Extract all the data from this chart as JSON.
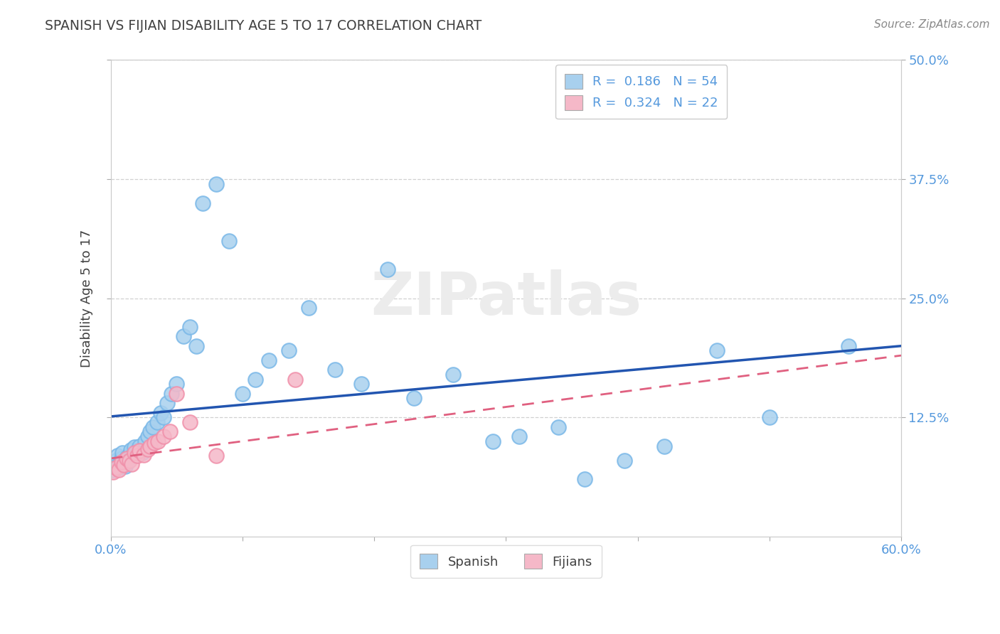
{
  "title": "SPANISH VS FIJIAN DISABILITY AGE 5 TO 17 CORRELATION CHART",
  "source_text": "Source: ZipAtlas.com",
  "ylabel": "Disability Age 5 to 17",
  "xlim": [
    0.0,
    0.6
  ],
  "ylim": [
    0.0,
    0.5
  ],
  "xtick_labels": [
    "0.0%",
    "",
    "",
    "",
    "",
    "",
    "60.0%"
  ],
  "xtick_vals": [
    0.0,
    0.1,
    0.2,
    0.3,
    0.4,
    0.5,
    0.6
  ],
  "ytick_vals": [
    0.125,
    0.25,
    0.375,
    0.5
  ],
  "right_ytick_labels": [
    "12.5%",
    "25.0%",
    "37.5%",
    "50.0%"
  ],
  "spanish_color": "#a8d0ee",
  "fijian_color": "#f5b8c8",
  "spanish_edge_color": "#7ab8e8",
  "fijian_edge_color": "#f090aa",
  "spanish_line_color": "#2255b0",
  "fijian_line_color": "#e06080",
  "legend_label1": "R =  0.186   N = 54",
  "legend_label2": "R =  0.324   N = 22",
  "title_color": "#404040",
  "axis_label_color": "#404040",
  "tick_color": "#5599dd",
  "background_color": "#ffffff",
  "grid_color": "#cccccc",
  "watermark_text": "ZIPatlas",
  "spanish_x": [
    0.002,
    0.003,
    0.004,
    0.005,
    0.006,
    0.007,
    0.008,
    0.009,
    0.01,
    0.011,
    0.012,
    0.013,
    0.014,
    0.015,
    0.016,
    0.018,
    0.02,
    0.022,
    0.024,
    0.026,
    0.028,
    0.03,
    0.032,
    0.035,
    0.038,
    0.04,
    0.043,
    0.046,
    0.05,
    0.055,
    0.06,
    0.065,
    0.07,
    0.08,
    0.09,
    0.1,
    0.11,
    0.12,
    0.135,
    0.15,
    0.17,
    0.19,
    0.21,
    0.23,
    0.26,
    0.29,
    0.31,
    0.34,
    0.36,
    0.39,
    0.42,
    0.46,
    0.5,
    0.56
  ],
  "spanish_y": [
    0.07,
    0.075,
    0.08,
    0.085,
    0.072,
    0.078,
    0.082,
    0.088,
    0.076,
    0.074,
    0.083,
    0.079,
    0.086,
    0.091,
    0.084,
    0.094,
    0.09,
    0.095,
    0.088,
    0.1,
    0.105,
    0.11,
    0.115,
    0.12,
    0.13,
    0.125,
    0.14,
    0.15,
    0.16,
    0.21,
    0.22,
    0.2,
    0.35,
    0.37,
    0.31,
    0.15,
    0.165,
    0.185,
    0.195,
    0.24,
    0.175,
    0.16,
    0.28,
    0.145,
    0.17,
    0.1,
    0.105,
    0.115,
    0.06,
    0.08,
    0.095,
    0.195,
    0.125,
    0.2
  ],
  "fijian_x": [
    0.002,
    0.004,
    0.006,
    0.008,
    0.01,
    0.012,
    0.014,
    0.016,
    0.018,
    0.02,
    0.022,
    0.025,
    0.028,
    0.03,
    0.033,
    0.036,
    0.04,
    0.045,
    0.05,
    0.06,
    0.08,
    0.14
  ],
  "fijian_y": [
    0.068,
    0.072,
    0.07,
    0.078,
    0.075,
    0.082,
    0.08,
    0.076,
    0.088,
    0.085,
    0.09,
    0.086,
    0.092,
    0.095,
    0.098,
    0.1,
    0.105,
    0.11,
    0.15,
    0.12,
    0.085,
    0.165
  ]
}
